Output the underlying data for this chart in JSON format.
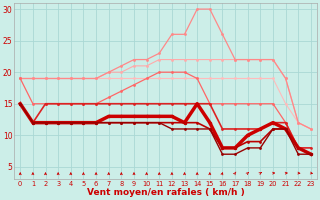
{
  "x": [
    0,
    1,
    2,
    3,
    4,
    5,
    6,
    7,
    8,
    9,
    10,
    11,
    12,
    13,
    14,
    15,
    16,
    17,
    18,
    19,
    20,
    21,
    22,
    23
  ],
  "series": [
    {
      "values": [
        19,
        19,
        19,
        19,
        19,
        19,
        19,
        19,
        19,
        19,
        19,
        19,
        19,
        19,
        19,
        19,
        19,
        19,
        19,
        19,
        19,
        15,
        12,
        11
      ],
      "color": "#ffbbbb",
      "lw": 0.8,
      "marker": "o",
      "ms": 2.0
    },
    {
      "values": [
        19,
        19,
        19,
        19,
        19,
        19,
        19,
        20,
        20,
        21,
        21,
        22,
        22,
        22,
        22,
        22,
        22,
        22,
        22,
        22,
        22,
        19,
        12,
        11
      ],
      "color": "#ffaaaa",
      "lw": 0.8,
      "marker": "o",
      "ms": 2.0
    },
    {
      "values": [
        19,
        19,
        19,
        19,
        19,
        19,
        19,
        20,
        21,
        22,
        22,
        23,
        26,
        26,
        30,
        30,
        26,
        22,
        22,
        22,
        22,
        19,
        12,
        11
      ],
      "color": "#ff8888",
      "lw": 0.9,
      "marker": "o",
      "ms": 2.0
    },
    {
      "values": [
        19,
        15,
        15,
        15,
        15,
        15,
        15,
        16,
        17,
        18,
        19,
        20,
        20,
        20,
        19,
        15,
        15,
        15,
        15,
        15,
        15,
        12,
        8,
        7
      ],
      "color": "#ff6666",
      "lw": 0.9,
      "marker": "o",
      "ms": 2.0
    },
    {
      "values": [
        15,
        12,
        15,
        15,
        15,
        15,
        15,
        15,
        15,
        15,
        15,
        15,
        15,
        15,
        15,
        15,
        11,
        11,
        11,
        11,
        12,
        12,
        8,
        8
      ],
      "color": "#dd2222",
      "lw": 1.2,
      "marker": "o",
      "ms": 2.0
    },
    {
      "values": [
        15,
        12,
        12,
        12,
        12,
        12,
        12,
        13,
        13,
        13,
        13,
        13,
        13,
        12,
        15,
        12,
        8,
        8,
        10,
        11,
        12,
        11,
        8,
        7
      ],
      "color": "#cc0000",
      "lw": 2.5,
      "marker": "o",
      "ms": 2.5
    },
    {
      "values": [
        15,
        12,
        12,
        12,
        12,
        12,
        12,
        12,
        12,
        12,
        12,
        12,
        12,
        12,
        12,
        11,
        8,
        8,
        9,
        9,
        11,
        11,
        8,
        7
      ],
      "color": "#bb0000",
      "lw": 1.2,
      "marker": "o",
      "ms": 2.0
    },
    {
      "values": [
        15,
        12,
        12,
        12,
        12,
        12,
        12,
        12,
        12,
        12,
        12,
        12,
        11,
        11,
        11,
        11,
        7,
        7,
        8,
        8,
        11,
        11,
        7,
        7
      ],
      "color": "#990000",
      "lw": 1.0,
      "marker": "o",
      "ms": 2.0
    }
  ],
  "xlabel": "Vent moyen/en rafales ( km/h )",
  "ylim": [
    3,
    31
  ],
  "xlim": [
    -0.5,
    23.5
  ],
  "yticks": [
    5,
    10,
    15,
    20,
    25,
    30
  ],
  "xticks": [
    0,
    1,
    2,
    3,
    4,
    5,
    6,
    7,
    8,
    9,
    10,
    11,
    12,
    13,
    14,
    15,
    16,
    17,
    18,
    19,
    20,
    21,
    22,
    23
  ],
  "bg_color": "#cceee8",
  "grid_color": "#aad8d4",
  "tick_color": "#cc0000",
  "label_color": "#cc0000",
  "figsize": [
    3.2,
    2.0
  ],
  "dpi": 100
}
